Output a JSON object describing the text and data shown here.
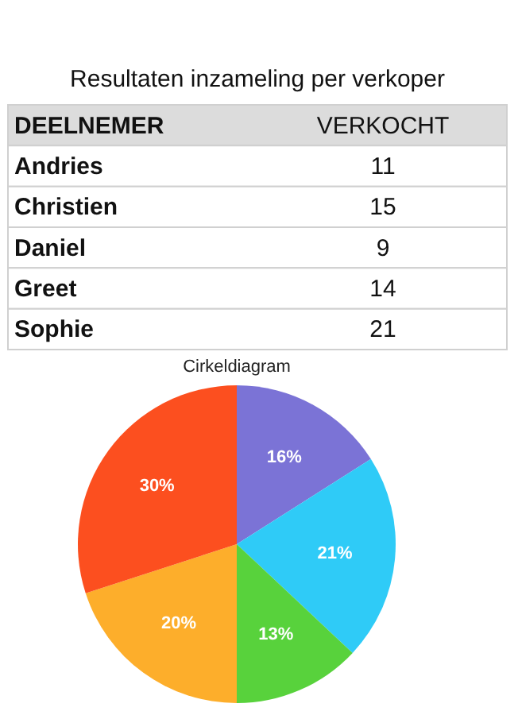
{
  "chart_data": [
    {
      "type": "other",
      "title": "Resultaten inzameling per verkoper",
      "xlabel": "DEELNEMER",
      "ylabel": "VERKOCHT",
      "categories": [
        "Andries",
        "Christien",
        "Daniel",
        "Greet",
        "Sophie"
      ],
      "values": [
        11,
        15,
        9,
        14,
        21
      ],
      "data_labels": true
    },
    {
      "type": "pie",
      "title": "Cirkeldiagram",
      "categories": [
        null,
        null,
        null,
        null,
        null
      ],
      "values": [
        16,
        21,
        13,
        20,
        30
      ],
      "colors": [
        "#7b73d6",
        "#2fcbf7",
        "#58d23c",
        "#fdae2b",
        "#fc4f1f"
      ],
      "value_labels": [
        "16%",
        "21%",
        "13%",
        "20%",
        "30%"
      ]
    }
  ]
}
